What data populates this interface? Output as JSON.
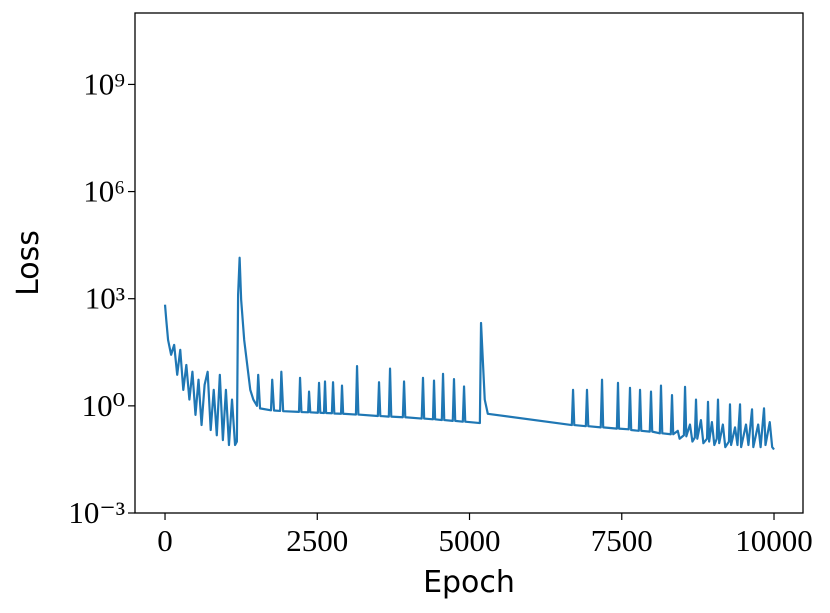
{
  "chart_data": {
    "type": "line",
    "xlabel": "Epoch",
    "ylabel": "Loss",
    "log_y": true,
    "xlim": [
      -493,
      10476
    ],
    "ylim": [
      0.001,
      100000000000
    ],
    "xticks": [
      0,
      2500,
      5000,
      7500,
      10000
    ],
    "yticks": [
      {
        "value": 0.001,
        "label": "10⁻³"
      },
      {
        "value": 1,
        "label": "10⁰"
      },
      {
        "value": 1000,
        "label": "10³"
      },
      {
        "value": 1000000,
        "label": "10⁶"
      },
      {
        "value": 1000000000,
        "label": "10⁹"
      }
    ],
    "series": [
      {
        "color": "#1f77b4",
        "x": [
          0,
          20,
          50,
          100,
          150,
          200,
          250,
          300,
          350,
          400,
          450,
          500,
          550,
          600,
          650,
          700,
          750,
          800,
          850,
          900,
          950,
          1000,
          1050,
          1100,
          1150,
          1180,
          1200,
          1225,
          1250,
          1300,
          1400,
          1450,
          1510,
          1530,
          1560,
          1740,
          1760,
          1790,
          1890,
          1910,
          1940,
          2200,
          2217,
          2240,
          2350,
          2365,
          2385,
          2510,
          2529,
          2550,
          2610,
          2627,
          2645,
          2740,
          2759,
          2780,
          2890,
          2906,
          2925,
          3135,
          3153,
          3175,
          3495,
          3514,
          3535,
          3675,
          3695,
          3715,
          3905,
          3925,
          3945,
          4215,
          4236,
          4255,
          4400,
          4417,
          4435,
          4545,
          4565,
          4585,
          4725,
          4745,
          4765,
          4890,
          4910,
          4930,
          5170,
          5189,
          5250,
          5300,
          6680,
          6700,
          6720,
          6910,
          6929,
          6950,
          7155,
          7176,
          7195,
          7420,
          7438,
          7455,
          7615,
          7635,
          7655,
          7780,
          7800,
          7820,
          7960,
          7980,
          8000,
          8125,
          8144,
          8165,
          8305,
          8325,
          8345,
          8420,
          8450,
          8520,
          8539,
          8560,
          8620,
          8660,
          8700,
          8719,
          8740,
          8800,
          8840,
          8900,
          8916,
          8935,
          8980,
          9020,
          9060,
          9080,
          9100,
          9160,
          9200,
          9260,
          9277,
          9295,
          9360,
          9400,
          9442,
          9460,
          9540,
          9580,
          9639,
          9660,
          9740,
          9780,
          9836,
          9860,
          9930,
          9970,
          10000
        ],
        "values": [
          680,
          260,
          70,
          27,
          51,
          7.4,
          37,
          2.8,
          14,
          1.5,
          9,
          0.56,
          5.4,
          0.29,
          3.9,
          9,
          0.21,
          2.8,
          0.15,
          7.4,
          0.11,
          2.8,
          0.08,
          1.5,
          0.08,
          0.1,
          1290,
          14000,
          940,
          70,
          2.8,
          1.5,
          1.0,
          7.4,
          0.85,
          0.75,
          5.4,
          0.74,
          0.72,
          9,
          0.71,
          0.68,
          6.1,
          0.67,
          0.66,
          2.5,
          0.66,
          0.64,
          4.4,
          0.64,
          0.63,
          4.8,
          0.63,
          0.62,
          4.6,
          0.61,
          0.6,
          3.7,
          0.6,
          0.57,
          13,
          0.57,
          0.52,
          4.6,
          0.52,
          0.5,
          11,
          0.5,
          0.48,
          4.8,
          0.48,
          0.44,
          6.1,
          0.44,
          0.42,
          5.1,
          0.42,
          0.4,
          7.9,
          0.4,
          0.38,
          5.6,
          0.38,
          0.36,
          3.5,
          0.36,
          0.33,
          210,
          1.5,
          0.6,
          0.29,
          2.8,
          0.29,
          0.27,
          2.8,
          0.27,
          0.25,
          5.4,
          0.25,
          0.23,
          4.4,
          0.23,
          0.22,
          3.2,
          0.21,
          0.2,
          2.8,
          0.2,
          0.19,
          2.5,
          0.19,
          0.17,
          3.7,
          0.17,
          0.16,
          2,
          0.16,
          0.2,
          0.12,
          0.15,
          3.4,
          0.14,
          0.3,
          0.1,
          0.13,
          1.5,
          0.12,
          0.4,
          0.09,
          0.12,
          1.3,
          0.1,
          0.35,
          0.08,
          0.12,
          1.5,
          0.09,
          0.3,
          0.07,
          0.1,
          1.1,
          0.08,
          0.25,
          0.08,
          1.1,
          0.07,
          0.3,
          0.08,
          0.8,
          0.07,
          0.3,
          0.07,
          0.85,
          0.08,
          0.35,
          0.07,
          0.06
        ]
      }
    ]
  }
}
